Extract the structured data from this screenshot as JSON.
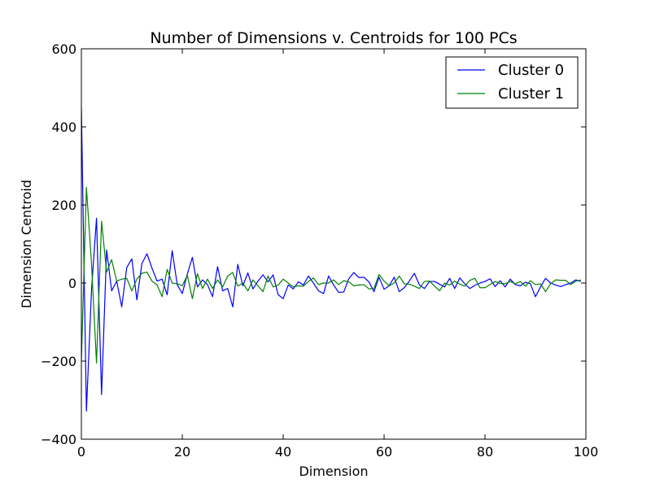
{
  "chart_data": {
    "type": "line",
    "title": "Number of Dimensions v. Centroids for 100 PCs",
    "xlabel": "Dimension",
    "ylabel": "Dimension Centroid",
    "xlim": [
      0,
      100
    ],
    "ylim": [
      -400,
      600
    ],
    "xticks": [
      0,
      20,
      40,
      60,
      80,
      100
    ],
    "yticks": [
      -400,
      -200,
      0,
      200,
      400,
      600
    ],
    "xtick_labels": [
      "0",
      "20",
      "40",
      "60",
      "80",
      "100"
    ],
    "ytick_labels": [
      "−400",
      "−200",
      "0",
      "200",
      "400",
      "600"
    ],
    "grid": false,
    "legend": "top-right",
    "x": [
      0,
      1,
      2,
      3,
      4,
      5,
      6,
      7,
      8,
      9,
      10,
      11,
      12,
      13,
      14,
      15,
      16,
      17,
      18,
      19,
      20,
      21,
      22,
      23,
      24,
      25,
      26,
      27,
      28,
      29,
      30,
      31,
      32,
      33,
      34,
      35,
      36,
      37,
      38,
      39,
      40,
      41,
      42,
      43,
      44,
      45,
      46,
      47,
      48,
      49,
      50,
      51,
      52,
      53,
      54,
      55,
      56,
      57,
      58,
      59,
      60,
      61,
      62,
      63,
      64,
      65,
      66,
      67,
      68,
      69,
      70,
      71,
      72,
      73,
      74,
      75,
      76,
      77,
      78,
      79,
      80,
      81,
      82,
      83,
      84,
      85,
      86,
      87,
      88,
      89,
      90,
      91,
      92,
      93,
      94,
      95,
      96,
      97,
      98,
      99
    ],
    "series": [
      {
        "name": "Cluster 0",
        "color": "#0000ff",
        "values": [
          450,
          -328,
          -20,
          166,
          -286,
          85,
          -20,
          5,
          -61,
          40,
          62,
          -43,
          50,
          75,
          38,
          5,
          10,
          -30,
          83,
          -4,
          -27,
          23,
          66,
          -10,
          8,
          -4,
          -35,
          42,
          -20,
          -14,
          -61,
          48,
          -7,
          26,
          -15,
          5,
          21,
          3,
          21,
          -30,
          -40,
          -5,
          -15,
          3,
          -5,
          18,
          0,
          -20,
          -27,
          18,
          -5,
          -24,
          -23,
          11,
          27,
          14,
          15,
          3,
          -22,
          15,
          -16,
          -7,
          15,
          -22,
          -12,
          5,
          25,
          -5,
          -14,
          4,
          4,
          -3,
          -10,
          12,
          -14,
          13,
          -2,
          -14,
          -6,
          0,
          4,
          11,
          -9,
          6,
          -10,
          10,
          -4,
          -7,
          2,
          -2,
          -35,
          -10,
          12,
          0,
          -5,
          -9,
          -4,
          0,
          8,
          4
        ]
      },
      {
        "name": "Cluster 1",
        "color": "#008000",
        "values": [
          -200,
          245,
          52,
          -205,
          158,
          28,
          60,
          5,
          10,
          12,
          -20,
          10,
          25,
          28,
          5,
          -5,
          -35,
          35,
          0,
          -2,
          -7,
          20,
          -40,
          24,
          -14,
          10,
          -14,
          8,
          -10,
          18,
          27,
          -8,
          0,
          -20,
          8,
          -7,
          -22,
          18,
          -10,
          -5,
          10,
          0,
          -10,
          -7,
          -8,
          4,
          13,
          -4,
          0,
          0,
          8,
          -4,
          6,
          3,
          -7,
          -5,
          -4,
          -15,
          -14,
          22,
          5,
          -7,
          0,
          18,
          -2,
          -3,
          -8,
          -14,
          4,
          5,
          -8,
          -20,
          0,
          -5,
          5,
          -3,
          -8,
          7,
          12,
          -12,
          -12,
          -4,
          4,
          -1,
          -2,
          4,
          -2,
          4,
          -8,
          6,
          -4,
          -2,
          -22,
          -2,
          8,
          7,
          7,
          -4,
          5,
          8
        ]
      }
    ]
  }
}
